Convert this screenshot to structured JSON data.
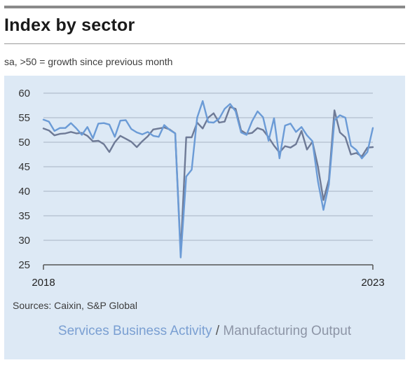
{
  "title": "Index by sector",
  "subtitle": "sa, >50 = growth since previous month",
  "source": "Sources: Caixin, S&P Global",
  "legend": {
    "series_a": "Services Business Activity",
    "separator": " / ",
    "series_b": "Manufacturing Output"
  },
  "colors": {
    "services": "#6b9bd6",
    "manufacturing": "#6e7a96",
    "grid": "#a8b3c2",
    "panel": "#dde9f5"
  },
  "chart_data": {
    "type": "line",
    "ylim": [
      25,
      60
    ],
    "yticks": [
      60,
      55,
      50,
      45,
      40,
      35,
      30,
      25
    ],
    "xticks": [
      "2018",
      "2023"
    ],
    "x_start": "2018-01",
    "x_end": "2023-01",
    "grid": true,
    "series": [
      {
        "name": "Services Business Activity",
        "values": [
          54.6,
          54.2,
          52.3,
          52.9,
          52.9,
          53.9,
          52.8,
          51.5,
          53.1,
          50.8,
          53.8,
          53.9,
          53.6,
          51.1,
          54.4,
          54.5,
          52.7,
          52.0,
          51.6,
          52.1,
          51.3,
          51.1,
          53.5,
          52.5,
          51.8,
          26.5,
          43.0,
          44.4,
          55.0,
          58.4,
          54.1,
          54.0,
          54.8,
          56.8,
          57.8,
          56.3,
          52.0,
          51.5,
          54.3,
          56.3,
          55.1,
          50.3,
          54.9,
          46.7,
          53.4,
          53.8,
          52.1,
          53.1,
          51.4,
          50.2,
          42.0,
          36.2,
          41.4,
          54.5,
          55.5,
          55.0,
          49.3,
          48.4,
          46.7,
          48.0,
          52.9
        ]
      },
      {
        "name": "Manufacturing Output",
        "values": [
          52.8,
          52.4,
          51.4,
          51.7,
          51.8,
          52.1,
          51.8,
          51.9,
          51.3,
          50.2,
          50.3,
          49.6,
          48.0,
          50.0,
          51.3,
          50.7,
          50.1,
          49.0,
          50.2,
          51.2,
          52.6,
          52.8,
          53.0,
          52.6,
          51.8,
          27.5,
          51.0,
          51.0,
          54.0,
          52.8,
          55.0,
          55.9,
          54.0,
          54.2,
          57.2,
          56.8,
          52.4,
          51.7,
          51.9,
          52.9,
          52.5,
          51.0,
          49.3,
          47.9,
          49.2,
          48.9,
          49.6,
          52.3,
          48.5,
          50.1,
          45.0,
          38.2,
          42.4,
          56.5,
          52.0,
          51.0,
          47.5,
          47.8,
          47.1,
          48.9,
          49.0
        ]
      }
    ]
  }
}
